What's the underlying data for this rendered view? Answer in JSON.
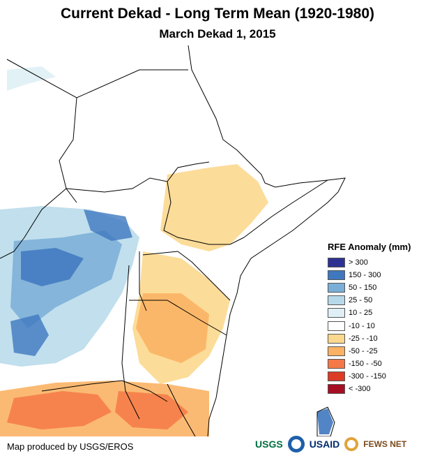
{
  "title": "Current Dekad - Long Term Mean (1920-1980)",
  "subtitle": "March Dekad 1, 2015",
  "legend": {
    "title": "RFE Anomaly (mm)",
    "items": [
      {
        "label": "> 300",
        "color": "#2e3192"
      },
      {
        "label": "150 - 300",
        "color": "#3f78bf"
      },
      {
        "label": "50 - 150",
        "color": "#7aaed6"
      },
      {
        "label": "25 - 50",
        "color": "#b6d9ea"
      },
      {
        "label": "10 - 25",
        "color": "#dfeff5"
      },
      {
        "label": "-10 - 10",
        "color": "#ffffff"
      },
      {
        "label": "-25 - -10",
        "color": "#fcd88e"
      },
      {
        "label": "-50 - -25",
        "color": "#fbb264"
      },
      {
        "label": "-150 - -50",
        "color": "#f47946"
      },
      {
        "label": "-300 - -150",
        "color": "#dc3b26"
      },
      {
        "label": "< -300",
        "color": "#a50f24"
      }
    ]
  },
  "credit": "Map produced by USGS/EROS",
  "logos": {
    "usgs": "USGS",
    "usaid": "USAID",
    "fewsnet": "FEWS NET"
  }
}
